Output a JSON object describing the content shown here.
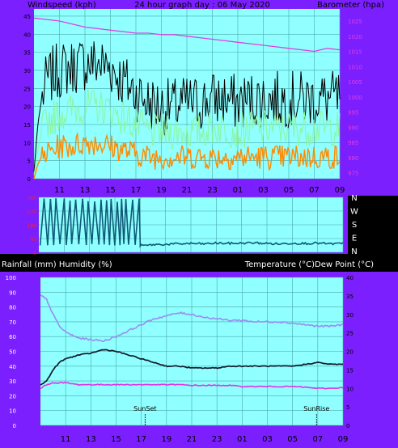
{
  "header": {
    "left": "Windspeed (kph)",
    "center": "24 hour graph day : 06 May 2020",
    "right": "Barometer (hpa)"
  },
  "colors": {
    "panel": "#7B1FFF",
    "plot_bg": "#8FFFFF",
    "grid": "#4CA8A8",
    "gust": "#000000",
    "wind_avg": "#8CF5A0",
    "wind_orange": "#FF8A00",
    "barometer": "#E040E0",
    "wind_dir": "#0F5A78",
    "temperature": "#121A2A",
    "humidity": "#9A8CF2",
    "dew_point": "#E033E8",
    "red_axis": "#FF2020"
  },
  "x_tick_labels": [
    "11",
    "13",
    "15",
    "17",
    "19",
    "21",
    "23",
    "01",
    "03",
    "05",
    "07",
    "09"
  ],
  "compass_labels": [
    "N",
    "W",
    "S",
    "E",
    "N"
  ],
  "lower_header": {
    "left": "Rainfall (mm)  Humidity (%)",
    "right": "Temperature (°C)Dew Point (°C)"
  },
  "events": [
    {
      "label": "SunSet",
      "hour": 17.3
    },
    {
      "label": "SunRise",
      "hour": 6.9
    }
  ],
  "chart_data": [
    {
      "type": "line",
      "title": "24 hour graph day : 06 May 2020",
      "x_ticks": [
        "11",
        "13",
        "15",
        "17",
        "19",
        "21",
        "23",
        "01",
        "03",
        "05",
        "07",
        "09"
      ],
      "x_range_hours": [
        9.0,
        33.0
      ],
      "y_left": {
        "label": "Windspeed (kph)",
        "ticks": [
          0,
          5,
          10,
          15,
          20,
          25,
          30,
          35,
          40,
          45
        ],
        "range": [
          0,
          47
        ]
      },
      "y_right": {
        "label": "Barometer (hpa)",
        "ticks": [
          975,
          980,
          985,
          990,
          995,
          1000,
          1005,
          1010,
          1015,
          1020,
          1025
        ],
        "range": [
          973,
          1029
        ]
      },
      "series": [
        {
          "axis": "left",
          "hours": [
            9.0,
            9.3,
            9.6,
            10.0,
            10.5,
            11,
            12,
            13,
            14,
            15,
            16,
            17,
            18,
            19,
            20,
            21,
            22,
            23,
            24,
            25,
            26,
            27,
            28,
            29,
            30,
            31,
            32,
            33
          ],
          "values": [
            2,
            15,
            22,
            27,
            29,
            30,
            31,
            32,
            32,
            31,
            27,
            24,
            21,
            20,
            20,
            21,
            21,
            22,
            22,
            21,
            22,
            22,
            22,
            22,
            22,
            22,
            22,
            22
          ]
        },
        {
          "axis": "left",
          "hours": [
            9.0,
            9.3,
            9.6,
            10.0,
            10.5,
            11,
            12,
            13,
            14,
            15,
            16,
            17,
            18,
            19,
            20,
            21,
            22,
            23,
            24,
            25,
            26,
            27,
            28,
            29,
            30,
            31,
            32,
            33
          ],
          "values": [
            1,
            8,
            13,
            16,
            17,
            18,
            19,
            20,
            20,
            19,
            17,
            15,
            13,
            13,
            13,
            13,
            13,
            14,
            14,
            13,
            14,
            14,
            14,
            14,
            14,
            14,
            14,
            14
          ]
        },
        {
          "axis": "left",
          "hours": [
            9.0,
            9.3,
            9.6,
            10.0,
            10.5,
            11,
            12,
            13,
            14,
            15,
            16,
            17,
            18,
            19,
            20,
            21,
            22,
            23,
            24,
            25,
            26,
            27,
            28,
            29,
            30,
            31,
            32,
            33
          ],
          "values": [
            0,
            4,
            6,
            7,
            8,
            9,
            9,
            10,
            10,
            9,
            8,
            7,
            6,
            6,
            6,
            6,
            6,
            6,
            6,
            6,
            6,
            6,
            6,
            6,
            6,
            6,
            6,
            6
          ]
        },
        {
          "axis": "right",
          "hours": [
            9.0,
            10,
            11,
            12,
            13,
            14,
            15,
            16,
            17,
            18,
            19,
            20,
            21,
            22,
            23,
            24,
            25,
            26,
            27,
            28,
            29,
            30,
            31,
            32,
            33
          ],
          "values": [
            1026,
            1025.5,
            1025,
            1024,
            1023,
            1022.5,
            1022,
            1021.5,
            1021,
            1021,
            1020.5,
            1020.5,
            1020,
            1019.5,
            1019,
            1018.5,
            1018,
            1017.5,
            1017,
            1016.5,
            1016,
            1015.5,
            1015,
            1016,
            1015.5
          ]
        }
      ]
    },
    {
      "type": "line",
      "y_ticks": [
        "0",
        "90",
        "180",
        "270",
        "360"
      ],
      "y_range": [
        0,
        360
      ],
      "series": [
        {
          "hours": [
            9.1,
            17.0,
            17.5,
            18,
            19,
            20,
            21,
            22,
            23,
            24,
            25,
            26,
            27,
            28,
            29,
            30,
            31,
            32,
            33
          ],
          "values": [
            45,
            45,
            45,
            50,
            52,
            55,
            58,
            55,
            60,
            58,
            60,
            62,
            58,
            55,
            60,
            58,
            60,
            55,
            58
          ]
        }
      ]
    },
    {
      "type": "line",
      "y_left": {
        "label": "Rainfall (mm)  Humidity (%)",
        "ticks": [
          0,
          10,
          20,
          30,
          40,
          50,
          60,
          70,
          80,
          90,
          100
        ],
        "range": [
          0,
          100
        ]
      },
      "y_right": {
        "label": "Temperature (°C)Dew Point (°C)",
        "ticks": [
          0,
          5,
          10,
          15,
          20,
          25,
          30,
          35,
          40
        ],
        "range": [
          0,
          40
        ]
      },
      "series": [
        {
          "axis": "right",
          "hours": [
            9.0,
            9.5,
            10,
            10.5,
            11,
            12,
            13,
            14,
            15,
            16,
            17,
            18,
            19,
            20,
            21,
            22,
            23,
            24,
            25,
            26,
            27,
            28,
            29,
            30,
            31,
            32,
            33
          ],
          "values": [
            11,
            12,
            15,
            17,
            18,
            19,
            19.5,
            20.5,
            20,
            19,
            18,
            17,
            16,
            16,
            15.5,
            15.5,
            15.5,
            16,
            16,
            16,
            16,
            16,
            16,
            16.5,
            17,
            16.5,
            16.5
          ]
        },
        {
          "axis": "left",
          "hours": [
            9.0,
            9.5,
            10,
            10.5,
            11,
            12,
            13,
            14,
            15,
            16,
            17,
            18,
            19,
            20,
            21,
            22,
            23,
            24,
            25,
            26,
            27,
            28,
            29,
            30,
            31,
            32,
            33
          ],
          "values": [
            88,
            85,
            75,
            67,
            63,
            59,
            58,
            57,
            60,
            64,
            68,
            72,
            74,
            76,
            75,
            73,
            72,
            71,
            71,
            70,
            70,
            70,
            69,
            68,
            67,
            67,
            68
          ]
        },
        {
          "axis": "right",
          "hours": [
            9.0,
            9.5,
            10,
            11,
            12,
            13,
            14,
            15,
            16,
            17,
            18,
            19,
            20,
            21,
            22,
            23,
            24,
            25,
            26,
            27,
            28,
            29,
            30,
            31,
            32,
            33
          ],
          "values": [
            10,
            11,
            11.5,
            11.5,
            11,
            11,
            11,
            11,
            11,
            11,
            11,
            11,
            11,
            10.8,
            10.8,
            10.8,
            10.8,
            10.5,
            10.5,
            10.5,
            10.5,
            10.5,
            10.3,
            10,
            10,
            10.2
          ]
        }
      ]
    }
  ]
}
